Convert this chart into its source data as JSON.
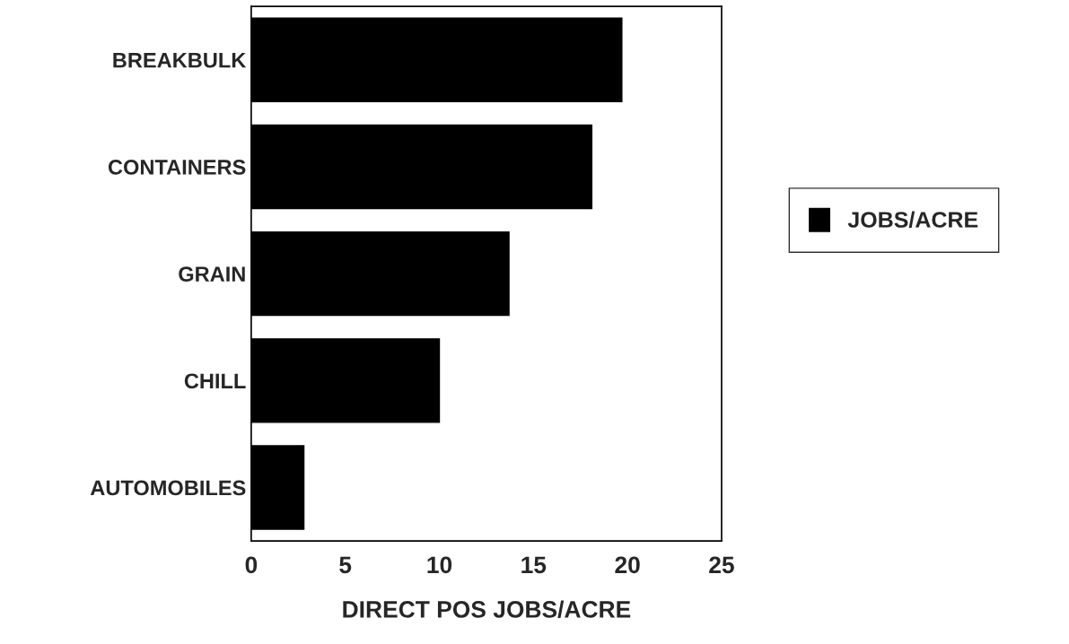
{
  "chart_data": {
    "type": "bar",
    "orientation": "horizontal",
    "categories": [
      "BREAKBULK",
      "CONTAINERS",
      "GRAIN",
      "CHILL",
      "AUTOMOBILES"
    ],
    "series": [
      {
        "name": "JOBS/ACRE",
        "color": "#000000",
        "values": [
          19.7,
          18.1,
          13.7,
          10.0,
          2.8
        ]
      }
    ],
    "xlabel": "DIRECT POS JOBS/ACRE",
    "xlim": [
      0,
      25
    ],
    "xticks": [
      0,
      5,
      10,
      15,
      20,
      25
    ],
    "grid": false,
    "legend": "right"
  }
}
